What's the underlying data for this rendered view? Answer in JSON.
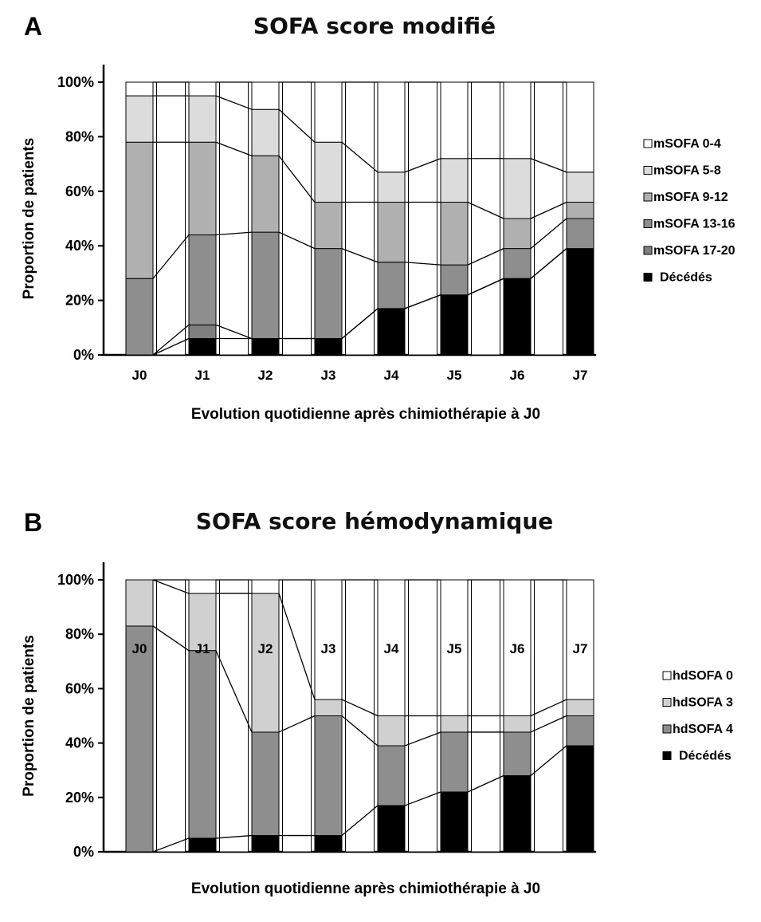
{
  "chart_data": [
    {
      "type": "bar",
      "stacked": true,
      "panel_letter": "A",
      "title": "SOFA score modifié",
      "xlabel": "Evolution quotidienne après chimiothérapie à J0",
      "ylabel": "Proportion de patients",
      "ylim": [
        0,
        100
      ],
      "y_ticks": [
        "0%",
        "20%",
        "40%",
        "60%",
        "80%",
        "100%"
      ],
      "categories": [
        "J0",
        "J1",
        "J2",
        "J3",
        "J4",
        "J5",
        "J6",
        "J7"
      ],
      "legend_position": "right",
      "series": [
        {
          "name": "Décédés",
          "color": "#000000",
          "values": [
            0,
            6,
            6,
            6,
            17,
            22,
            28,
            39
          ]
        },
        {
          "name": "mSOFA 17-20",
          "color": "#7f7f7f",
          "values": [
            0,
            5,
            0,
            0,
            0,
            0,
            0,
            0
          ]
        },
        {
          "name": "mSOFA 13-16",
          "color": "#8e8e8e",
          "values": [
            28,
            33,
            39,
            33,
            17,
            11,
            11,
            11
          ]
        },
        {
          "name": "mSOFA 9-12",
          "color": "#b0b0b0",
          "values": [
            50,
            34,
            28,
            17,
            22,
            23,
            11,
            6
          ]
        },
        {
          "name": "mSOFA 5-8",
          "color": "#dcdcdc",
          "values": [
            17,
            17,
            17,
            22,
            11,
            16,
            22,
            11
          ]
        },
        {
          "name": "mSOFA 0-4",
          "color": "#ffffff",
          "values": [
            5,
            5,
            10,
            22,
            33,
            28,
            28,
            33
          ]
        }
      ]
    },
    {
      "type": "bar",
      "stacked": true,
      "panel_letter": "B",
      "title": "SOFA score hémodynamique",
      "xlabel": "Evolution quotidienne après chimiothérapie à J0",
      "ylabel": "Proportion de patients",
      "ylim": [
        0,
        100
      ],
      "y_ticks": [
        "0%",
        "20%",
        "40%",
        "60%",
        "80%",
        "100%"
      ],
      "categories": [
        "J0",
        "J1",
        "J2",
        "J3",
        "J4",
        "J5",
        "J6",
        "J7"
      ],
      "legend_position": "right",
      "series": [
        {
          "name": "Décédés",
          "color": "#000000",
          "values": [
            0,
            5,
            6,
            6,
            17,
            22,
            28,
            39
          ]
        },
        {
          "name": "hdSOFA 4",
          "color": "#8e8e8e",
          "values": [
            83,
            69,
            38,
            44,
            22,
            22,
            16,
            11
          ]
        },
        {
          "name": "hdSOFA 3",
          "color": "#d0d0d0",
          "values": [
            17,
            21,
            51,
            6,
            11,
            6,
            6,
            6
          ]
        },
        {
          "name": "hdSOFA 0",
          "color": "#ffffff",
          "values": [
            0,
            5,
            5,
            44,
            50,
            50,
            50,
            44
          ]
        }
      ]
    }
  ]
}
